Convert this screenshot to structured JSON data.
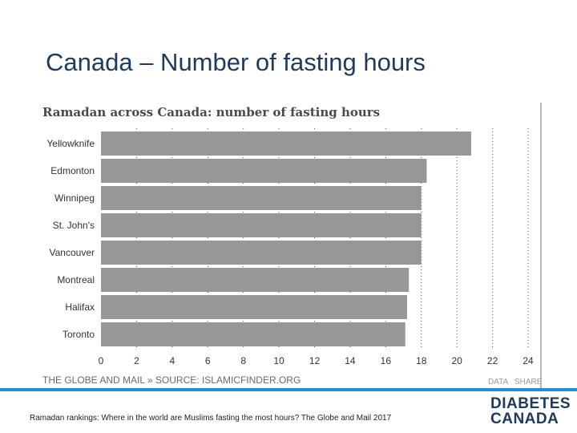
{
  "slide": {
    "title": "Canada – Number of fasting hours",
    "caption": "Ramadan rankings: Where in the world are Muslims fasting the most hours? The Globe and Mail 2017"
  },
  "logo": {
    "line1": "DIABETES",
    "line2": "CANADA"
  },
  "chart_links": {
    "data": "DATA",
    "share": "SHARE"
  },
  "colors": {
    "bar": "#979797",
    "title": "#1f3a5f",
    "rule": "#1f8fd6"
  },
  "chart_data": {
    "type": "bar",
    "orientation": "horizontal",
    "title": "Ramadan across Canada: number of fasting hours",
    "source": "THE GLOBE AND MAIL » SOURCE: ISLAMICFINDER.ORG",
    "categories": [
      "Yellowknife",
      "Edmonton",
      "Winnipeg",
      "St. John's",
      "Vancouver",
      "Montreal",
      "Halifax",
      "Toronto"
    ],
    "values": [
      20.8,
      18.3,
      18.0,
      18.0,
      18.0,
      17.3,
      17.2,
      17.1
    ],
    "xlim": [
      0,
      24
    ],
    "xticks": [
      0,
      2,
      4,
      6,
      8,
      10,
      12,
      14,
      16,
      18,
      20,
      22,
      24
    ],
    "grid": true
  }
}
